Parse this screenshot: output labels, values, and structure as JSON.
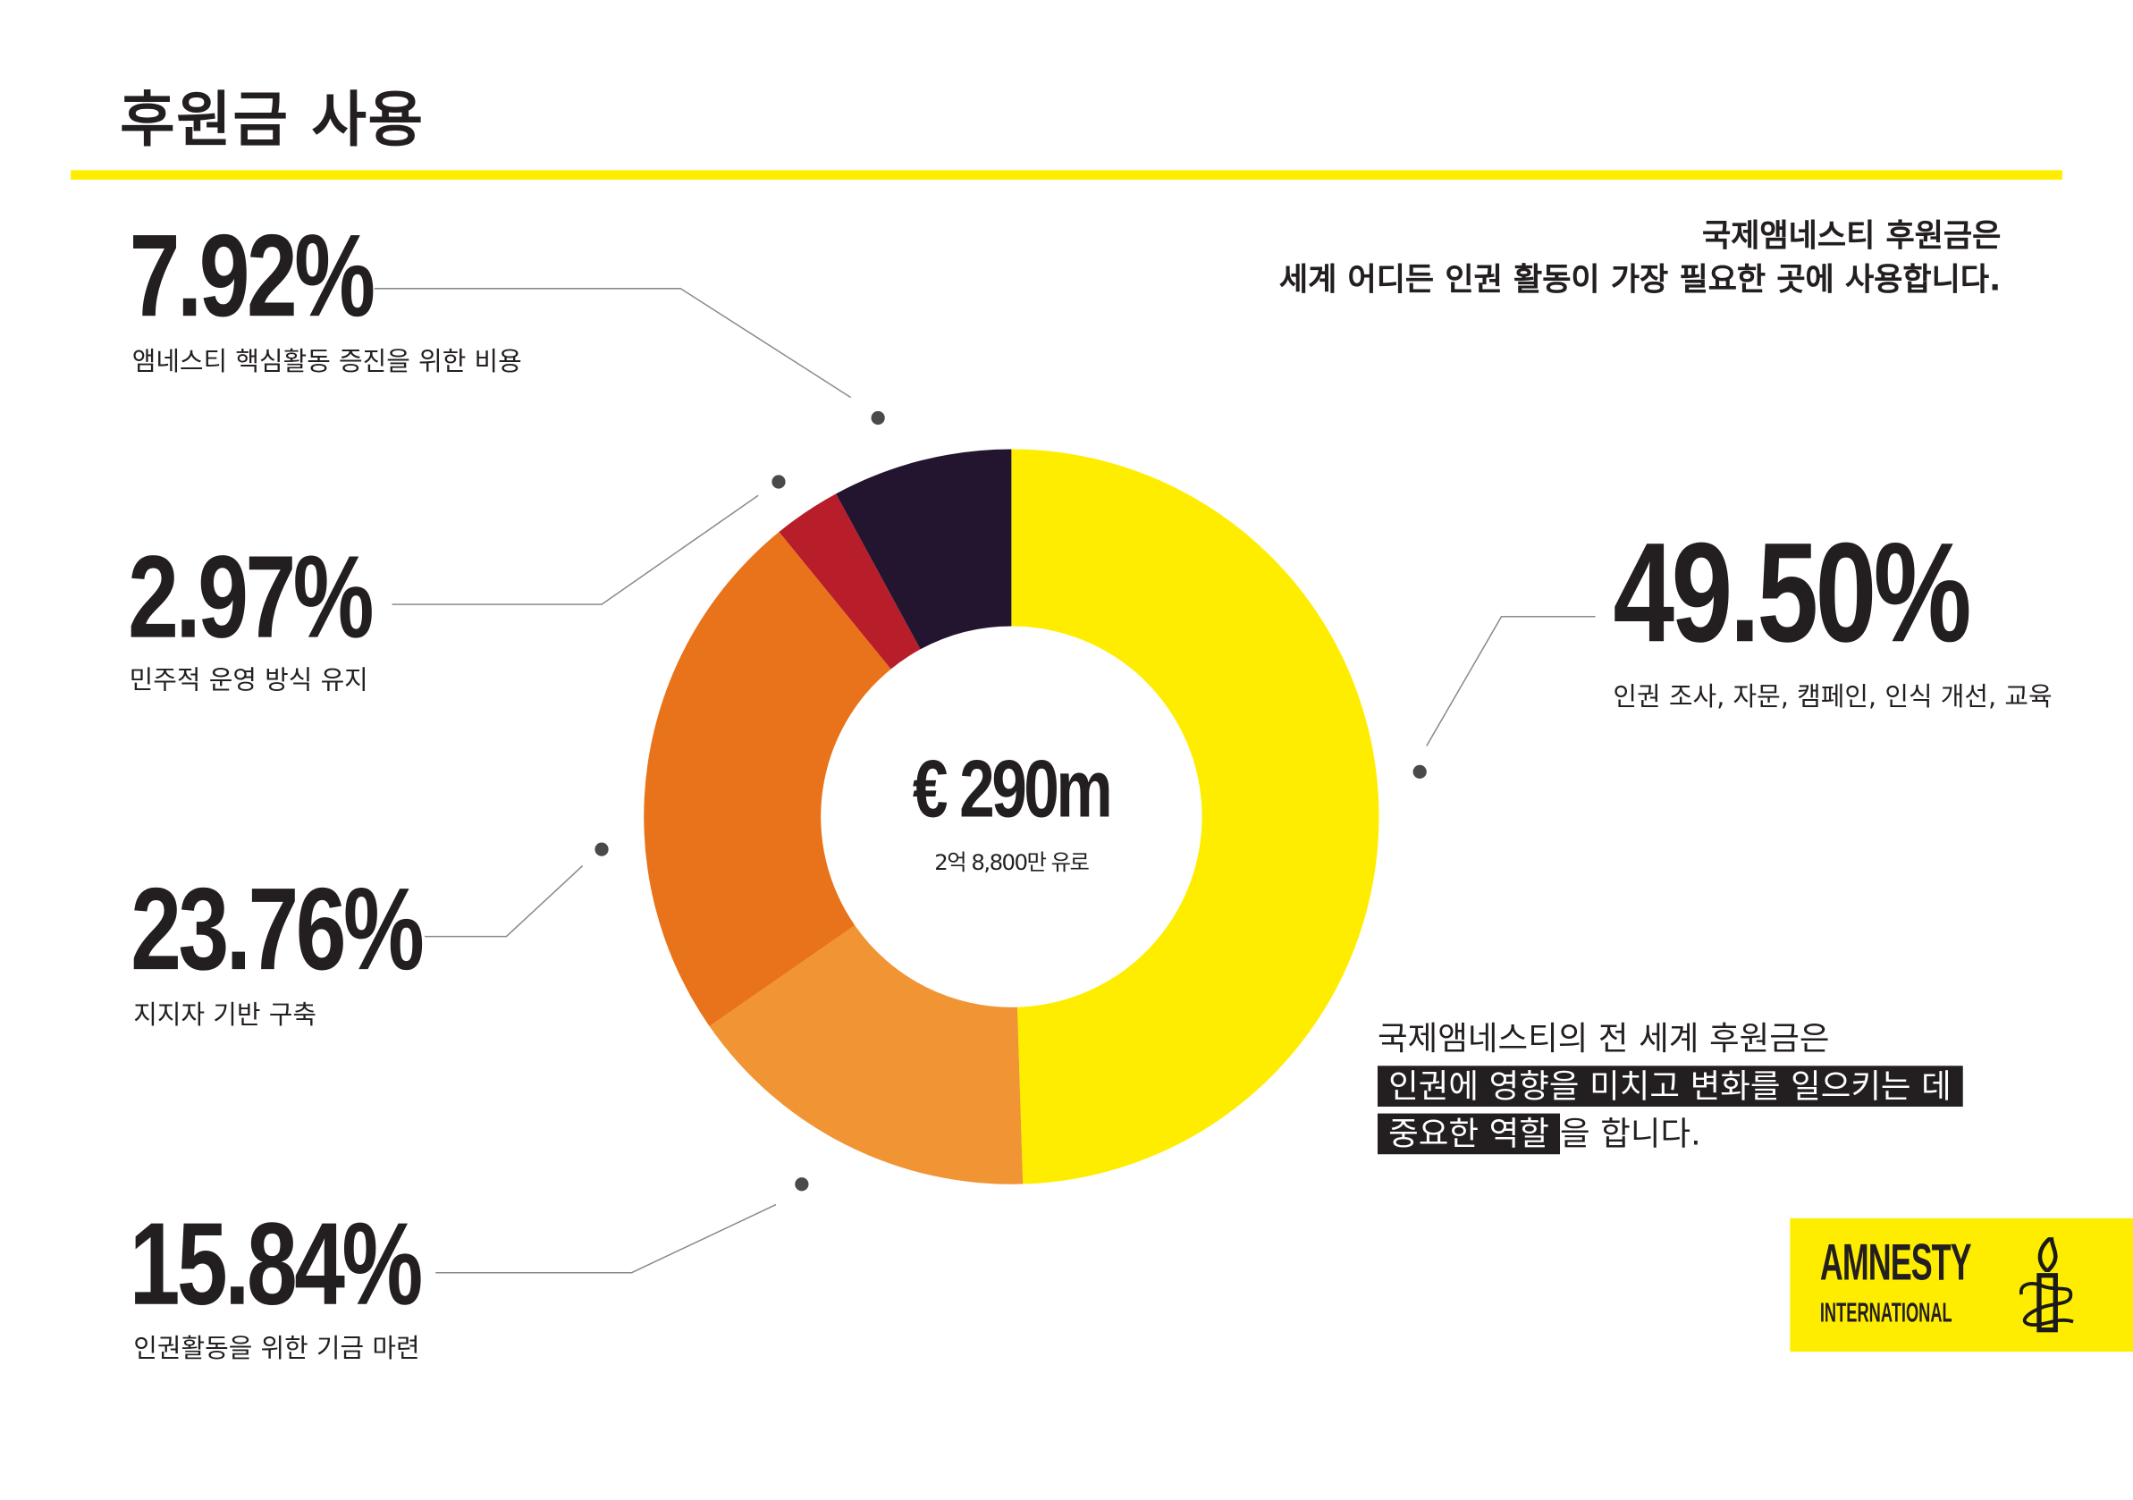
{
  "header": {
    "title": "후원금 사용"
  },
  "note_top": {
    "line1": "국제앰네스티 후원금은",
    "line2": "세계 어디든 인권 활동이 가장 필요한 곳에 사용합니다."
  },
  "note_bottom": {
    "line1": "국제앰네스티의 전 세계 후원금은",
    "line2_highlight": "인권에 영향을 미치고 변화를 일으키는 데",
    "line3_highlight": "중요한 역할",
    "line3_rest": "을 합니다."
  },
  "center": {
    "amount": "€ 290m",
    "sub": "2억 8,800만 유로"
  },
  "logo": {
    "line1": "AMNESTY",
    "line2": "INTERNATIONAL"
  },
  "chart_data": {
    "type": "pie",
    "donut": true,
    "start": "12 o'clock, clockwise",
    "slices": [
      {
        "label": "인권 조사, 자문, 캠페인, 인식 개선, 교육",
        "pct_label": "49.50%",
        "value": 49.5,
        "color": "#FFED00"
      },
      {
        "label": "인권활동을 위한 기금 마련",
        "pct_label": "15.84%",
        "value": 15.84,
        "color": "#F19434"
      },
      {
        "label": "지지자 기반 구축",
        "pct_label": "23.76%",
        "value": 23.76,
        "color": "#E8731A"
      },
      {
        "label": "민주적 운영 방식 유지",
        "pct_label": "2.97%",
        "value": 2.97,
        "color": "#B81D2A"
      },
      {
        "label": "앰네스티 핵심활동 증진을 위한 비용",
        "pct_label": "7.92%",
        "value": 7.92,
        "color": "#231530"
      }
    ]
  }
}
